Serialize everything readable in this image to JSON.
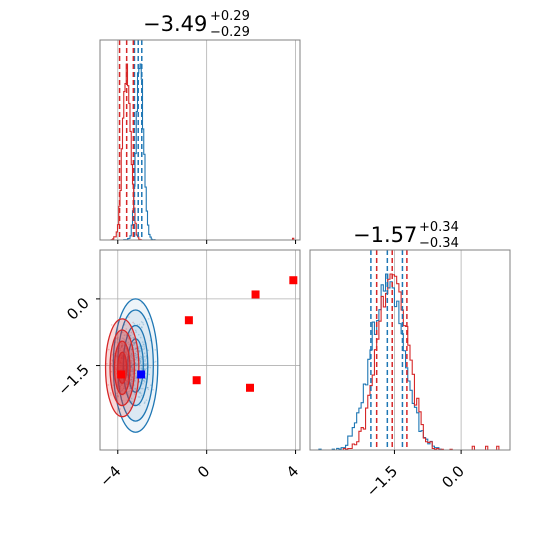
{
  "colors": {
    "blue": "#1f77b4",
    "red": "#d62728",
    "grid": "#b0b0b0",
    "frame": "#808080",
    "blue_marker": "#0000ff",
    "red_marker": "#ff0000"
  },
  "titles": {
    "p0": {
      "value": "−3.49",
      "sup": "+0.29",
      "sub": "−0.29"
    },
    "p1": {
      "value": "−1.57",
      "sup": "+0.34",
      "sub": "−0.34"
    }
  },
  "chart_data": [
    {
      "type": "histogram",
      "panel": "top-left marginal",
      "xlim": [
        -4.8,
        4.2
      ],
      "grid": true,
      "series": [
        {
          "color": "blue",
          "peak": -3.0,
          "width": 0.16,
          "quantiles": [
            -3.25,
            -3.08,
            -2.92
          ]
        },
        {
          "color": "red",
          "peak": -3.6,
          "width": 0.18,
          "quantiles": [
            -3.92,
            -3.6,
            -3.3
          ],
          "outlier_tail": [
            3.9
          ]
        }
      ]
    },
    {
      "type": "scatter",
      "panel": "bottom-left joint",
      "xlim": [
        -4.8,
        4.2
      ],
      "ylim": [
        -3.4,
        1.1
      ],
      "grid": true,
      "xticks": [
        -4,
        0,
        4
      ],
      "xtick_labels": [
        "−4",
        "0",
        "4"
      ],
      "yticks": [
        0.0,
        -1.5
      ],
      "ytick_labels": [
        "0.0",
        "−1.5"
      ],
      "contours": [
        {
          "color": "blue",
          "center": [
            -3.2,
            -1.5
          ],
          "levels": [
            [
              0.35,
              0.6
            ],
            [
              0.55,
              0.9
            ],
            [
              0.8,
              1.25
            ],
            [
              1.0,
              1.5
            ]
          ]
        },
        {
          "color": "red",
          "center": [
            -3.8,
            -1.55
          ],
          "levels": [
            [
              0.2,
              0.35
            ],
            [
              0.35,
              0.6
            ],
            [
              0.55,
              0.85
            ],
            [
              0.75,
              1.1
            ]
          ]
        }
      ],
      "red_squares": [
        [
          3.9,
          0.42
        ],
        [
          2.2,
          0.1
        ],
        [
          -0.8,
          -0.48
        ],
        [
          -0.45,
          -1.83
        ],
        [
          1.95,
          -2.0
        ],
        [
          -3.85,
          -1.7
        ]
      ],
      "blue_squares": [
        [
          -2.95,
          -1.7
        ]
      ]
    },
    {
      "type": "histogram",
      "panel": "bottom-right marginal",
      "xlim": [
        -3.4,
        1.1
      ],
      "grid": true,
      "xticks": [
        -1.5,
        0.0
      ],
      "xtick_labels": [
        "−1.5",
        "0.0"
      ],
      "series": [
        {
          "color": "blue",
          "peak": -1.65,
          "width": 0.36,
          "quantiles": [
            -2.03,
            -1.66,
            -1.32
          ]
        },
        {
          "color": "red",
          "peak": -1.55,
          "width": 0.33,
          "quantiles": [
            -1.9,
            -1.55,
            -1.22
          ],
          "outlier_tail": [
            0.3,
            0.55,
            0.8
          ]
        }
      ]
    }
  ]
}
